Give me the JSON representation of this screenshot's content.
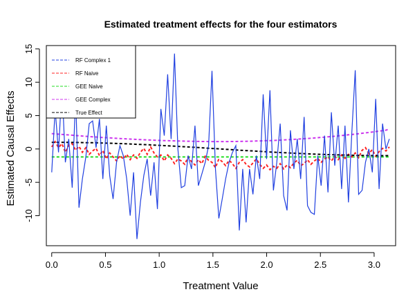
{
  "chart_data": {
    "type": "line",
    "title": "Estimated treatment effects for the four estimators",
    "xlabel": "Treatment Value",
    "ylabel": "Estimated Causal Effects",
    "xlim": [
      -0.05,
      3.2
    ],
    "ylim": [
      -14.5,
      15.5
    ],
    "xticks": [
      0.0,
      0.5,
      1.0,
      1.5,
      2.0,
      2.5,
      3.0
    ],
    "xtick_labels": [
      "0.0",
      "0.5",
      "1.0",
      "1.5",
      "2.0",
      "2.5",
      "3.0"
    ],
    "yticks": [
      -10,
      -5,
      0,
      5,
      10,
      15
    ],
    "ytick_labels": [
      "-10",
      "-5",
      "0",
      "5",
      "10",
      "15"
    ],
    "legend_position": "top-left",
    "x": [
      0.0,
      0.0317,
      0.0635,
      0.0952,
      0.1269,
      0.1587,
      0.1904,
      0.2221,
      0.2539,
      0.2856,
      0.3173,
      0.3491,
      0.3808,
      0.4125,
      0.4443,
      0.476,
      0.5077,
      0.5395,
      0.5712,
      0.6029,
      0.6347,
      0.6664,
      0.6981,
      0.7299,
      0.7616,
      0.7933,
      0.8251,
      0.8568,
      0.8885,
      0.9203,
      0.952,
      0.9837,
      1.0155,
      1.0472,
      1.0789,
      1.1107,
      1.1424,
      1.1741,
      1.2059,
      1.2376,
      1.2693,
      1.3011,
      1.3328,
      1.3645,
      1.3963,
      1.428,
      1.4597,
      1.4915,
      1.5232,
      1.5549,
      1.5867,
      1.6184,
      1.6501,
      1.6819,
      1.7136,
      1.7453,
      1.7771,
      1.8088,
      1.8405,
      1.8723,
      1.904,
      1.9357,
      1.9675,
      1.9992,
      2.0309,
      2.0627,
      2.0944,
      2.1261,
      2.1579,
      2.1896,
      2.2213,
      2.2531,
      2.2848,
      2.3165,
      2.3483,
      2.38,
      2.4117,
      2.4435,
      2.4752,
      2.5069,
      2.5387,
      2.5704,
      2.6021,
      2.6339,
      2.6656,
      2.6973,
      2.7291,
      2.7608,
      2.7925,
      2.8243,
      2.856,
      2.8877,
      2.9195,
      2.9512,
      2.9829,
      3.0147,
      3.0464,
      3.0781,
      3.1099,
      3.1416
    ],
    "series": [
      {
        "name": "RF Complex 1",
        "color": "#1f3fe0",
        "style": "solid",
        "values": [
          -3.5,
          6.0,
          -0.5,
          9.5,
          -2.0,
          1.5,
          -5.8,
          8.0,
          -8.8,
          -4.5,
          -1.2,
          3.8,
          4.2,
          0.2,
          4.5,
          -4.5,
          3.5,
          -4.0,
          -7.5,
          -2.0,
          0.5,
          -1.0,
          -4.5,
          -10.0,
          -3.5,
          -13.5,
          -8.0,
          -4.0,
          -1.5,
          -7.0,
          -2.0,
          -9.0,
          6.0,
          2.0,
          11.2,
          1.5,
          14.3,
          0.0,
          -5.8,
          -5.5,
          -1.0,
          -3.0,
          3.5,
          -5.5,
          -3.8,
          -2.0,
          0.5,
          11.7,
          -3.0,
          -10.4,
          -7.5,
          -4.5,
          -2.0,
          -0.5,
          0.5,
          -12.2,
          -3.0,
          -11.0,
          -3.0,
          -6.8,
          -1.0,
          -4.5,
          8.2,
          -1.5,
          8.8,
          -6.2,
          -2.0,
          3.8,
          -7.0,
          -9.2,
          2.8,
          -3.0,
          1.5,
          -4.5,
          4.8,
          -8.5,
          -9.5,
          -9.8,
          -1.0,
          -5.5,
          2.0,
          -6.5,
          5.5,
          -2.5,
          3.5,
          -6.0,
          3.5,
          -8.0,
          2.5,
          11.8,
          -6.8,
          -6.2,
          -2.0,
          0.0,
          -3.5,
          7.5,
          -6.0,
          3.8,
          0.0,
          1.5
        ]
      },
      {
        "name": "RF Naive",
        "color": "#ff2020",
        "style": "dashed",
        "values": [
          0.3,
          1.1,
          0.2,
          0.8,
          -0.5,
          0.6,
          0.8,
          -0.2,
          0.4,
          -0.5,
          0.2,
          -0.8,
          -0.3,
          0.1,
          -1.0,
          -0.2,
          -1.5,
          -0.6,
          -1.2,
          -1.8,
          -1.0,
          -1.5,
          -0.8,
          -1.6,
          -0.9,
          -1.4,
          -0.5,
          0.1,
          -0.8,
          0.3,
          -0.6,
          -1.2,
          -0.9,
          -1.8,
          -0.9,
          -1.4,
          -2.2,
          -1.5,
          -1.8,
          -2.3,
          -1.2,
          -1.9,
          -2.4,
          -1.6,
          -2.2,
          -1.1,
          -1.7,
          -2.0,
          -2.8,
          -1.5,
          -1.9,
          -2.5,
          -1.7,
          -2.2,
          -2.9,
          -2.0,
          -1.6,
          -2.3,
          -2.7,
          -2.1,
          -1.5,
          -2.3,
          -2.9,
          -2.4,
          -3.1,
          -2.6,
          -2.9,
          -2.2,
          -3.0,
          -2.4,
          -2.8,
          -2.1,
          -1.7,
          -2.5,
          -2.2,
          -1.6,
          -2.3,
          -1.8,
          -1.4,
          -2.0,
          -1.5,
          -1.2,
          -1.8,
          -1.1,
          -1.6,
          -0.9,
          -1.4,
          -0.8,
          -1.2,
          -0.6,
          -1.3,
          -0.2,
          0.2,
          -0.7,
          -0.1,
          -1.1,
          -0.4,
          0.1,
          -0.3,
          0.3
        ]
      },
      {
        "name": "GEE Naive",
        "color": "#22dd22",
        "style": "dashed",
        "values": [
          -1.2,
          -1.2,
          -1.2,
          -1.2,
          -1.2,
          -1.2,
          -1.2,
          -1.2,
          -1.2,
          -1.2,
          -1.2,
          -1.2,
          -1.2,
          -1.2,
          -1.2,
          -1.2,
          -1.2,
          -1.2,
          -1.2,
          -1.2,
          -1.2,
          -1.2,
          -1.2,
          -1.2,
          -1.2,
          -1.2,
          -1.2,
          -1.2,
          -1.2,
          -1.2,
          -1.2,
          -1.2,
          -1.2,
          -1.2,
          -1.2,
          -1.2,
          -1.2,
          -1.2,
          -1.2,
          -1.2,
          -1.2,
          -1.2,
          -1.2,
          -1.2,
          -1.2,
          -1.2,
          -1.2,
          -1.2,
          -1.2,
          -1.2,
          -1.2,
          -1.2,
          -1.2,
          -1.2,
          -1.2,
          -1.2,
          -1.2,
          -1.2,
          -1.2,
          -1.2,
          -1.2,
          -1.2,
          -1.2,
          -1.2,
          -1.2,
          -1.2,
          -1.2,
          -1.2,
          -1.2,
          -1.2,
          -1.2,
          -1.2,
          -1.2,
          -1.2,
          -1.2,
          -1.2,
          -1.2,
          -1.2,
          -1.2,
          -1.2,
          -1.2,
          -1.2,
          -1.2,
          -1.2,
          -1.2,
          -1.2,
          -1.2,
          -1.2,
          -1.2,
          -1.2,
          -1.2,
          -1.2,
          -1.2,
          -1.2,
          -1.2,
          -1.2,
          -1.2,
          -1.2,
          -1.2,
          -1.2
        ]
      },
      {
        "name": "GEE Complex",
        "color": "#cc33ee",
        "style": "dashed",
        "values": [
          2.3,
          2.26,
          2.22,
          2.18,
          2.14,
          2.1,
          2.06,
          2.02,
          1.98,
          1.94,
          1.9,
          1.86,
          1.82,
          1.79,
          1.75,
          1.72,
          1.69,
          1.66,
          1.63,
          1.6,
          1.57,
          1.54,
          1.51,
          1.48,
          1.46,
          1.43,
          1.41,
          1.38,
          1.36,
          1.34,
          1.32,
          1.3,
          1.28,
          1.26,
          1.24,
          1.22,
          1.21,
          1.19,
          1.18,
          1.17,
          1.16,
          1.15,
          1.14,
          1.13,
          1.12,
          1.12,
          1.11,
          1.11,
          1.11,
          1.11,
          1.11,
          1.11,
          1.11,
          1.12,
          1.12,
          1.13,
          1.14,
          1.15,
          1.16,
          1.17,
          1.19,
          1.2,
          1.22,
          1.24,
          1.26,
          1.28,
          1.3,
          1.33,
          1.35,
          1.38,
          1.41,
          1.44,
          1.47,
          1.5,
          1.54,
          1.57,
          1.61,
          1.65,
          1.69,
          1.73,
          1.77,
          1.82,
          1.86,
          1.91,
          1.96,
          2.01,
          2.06,
          2.12,
          2.17,
          2.23,
          2.29,
          2.35,
          2.41,
          2.48,
          2.54,
          2.61,
          2.68,
          2.75,
          2.82,
          3.0
        ]
      },
      {
        "name": "True Effect",
        "color": "#000000",
        "style": "dashed",
        "values": [
          1.0,
          1.0,
          1.0,
          1.0,
          0.99,
          0.99,
          0.98,
          0.98,
          0.97,
          0.96,
          0.95,
          0.94,
          0.93,
          0.92,
          0.9,
          0.89,
          0.87,
          0.86,
          0.84,
          0.82,
          0.81,
          0.79,
          0.77,
          0.75,
          0.72,
          0.7,
          0.68,
          0.66,
          0.63,
          0.61,
          0.58,
          0.56,
          0.53,
          0.5,
          0.47,
          0.45,
          0.42,
          0.39,
          0.36,
          0.33,
          0.3,
          0.27,
          0.24,
          0.21,
          0.18,
          0.14,
          0.11,
          0.08,
          0.05,
          0.02,
          -0.02,
          -0.05,
          -0.08,
          -0.11,
          -0.14,
          -0.18,
          -0.21,
          -0.24,
          -0.27,
          -0.3,
          -0.33,
          -0.36,
          -0.39,
          -0.42,
          -0.45,
          -0.47,
          -0.5,
          -0.53,
          -0.56,
          -0.58,
          -0.61,
          -0.63,
          -0.66,
          -0.68,
          -0.7,
          -0.72,
          -0.75,
          -0.77,
          -0.79,
          -0.81,
          -0.82,
          -0.84,
          -0.86,
          -0.87,
          -0.89,
          -0.9,
          -0.92,
          -0.93,
          -0.94,
          -0.95,
          -0.96,
          -0.97,
          -0.98,
          -0.98,
          -0.99,
          -0.99,
          -1.0,
          -1.0,
          -1.0,
          -1.0
        ]
      }
    ]
  }
}
